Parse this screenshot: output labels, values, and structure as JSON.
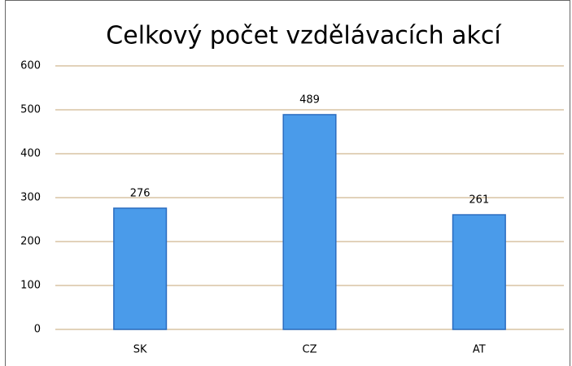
{
  "chart_data": {
    "type": "bar",
    "title": "Celkový počet vzdělávacích akcí",
    "categories": [
      "SK",
      "CZ",
      "AT"
    ],
    "values": [
      276,
      489,
      261
    ],
    "color": "#4a9bea",
    "edge_color": "#2a6cc0",
    "ylim": [
      0,
      600
    ],
    "yticks": [
      0,
      100,
      200,
      300,
      400,
      500,
      600
    ],
    "grid": true,
    "grid_color": "#d8c4a4"
  }
}
